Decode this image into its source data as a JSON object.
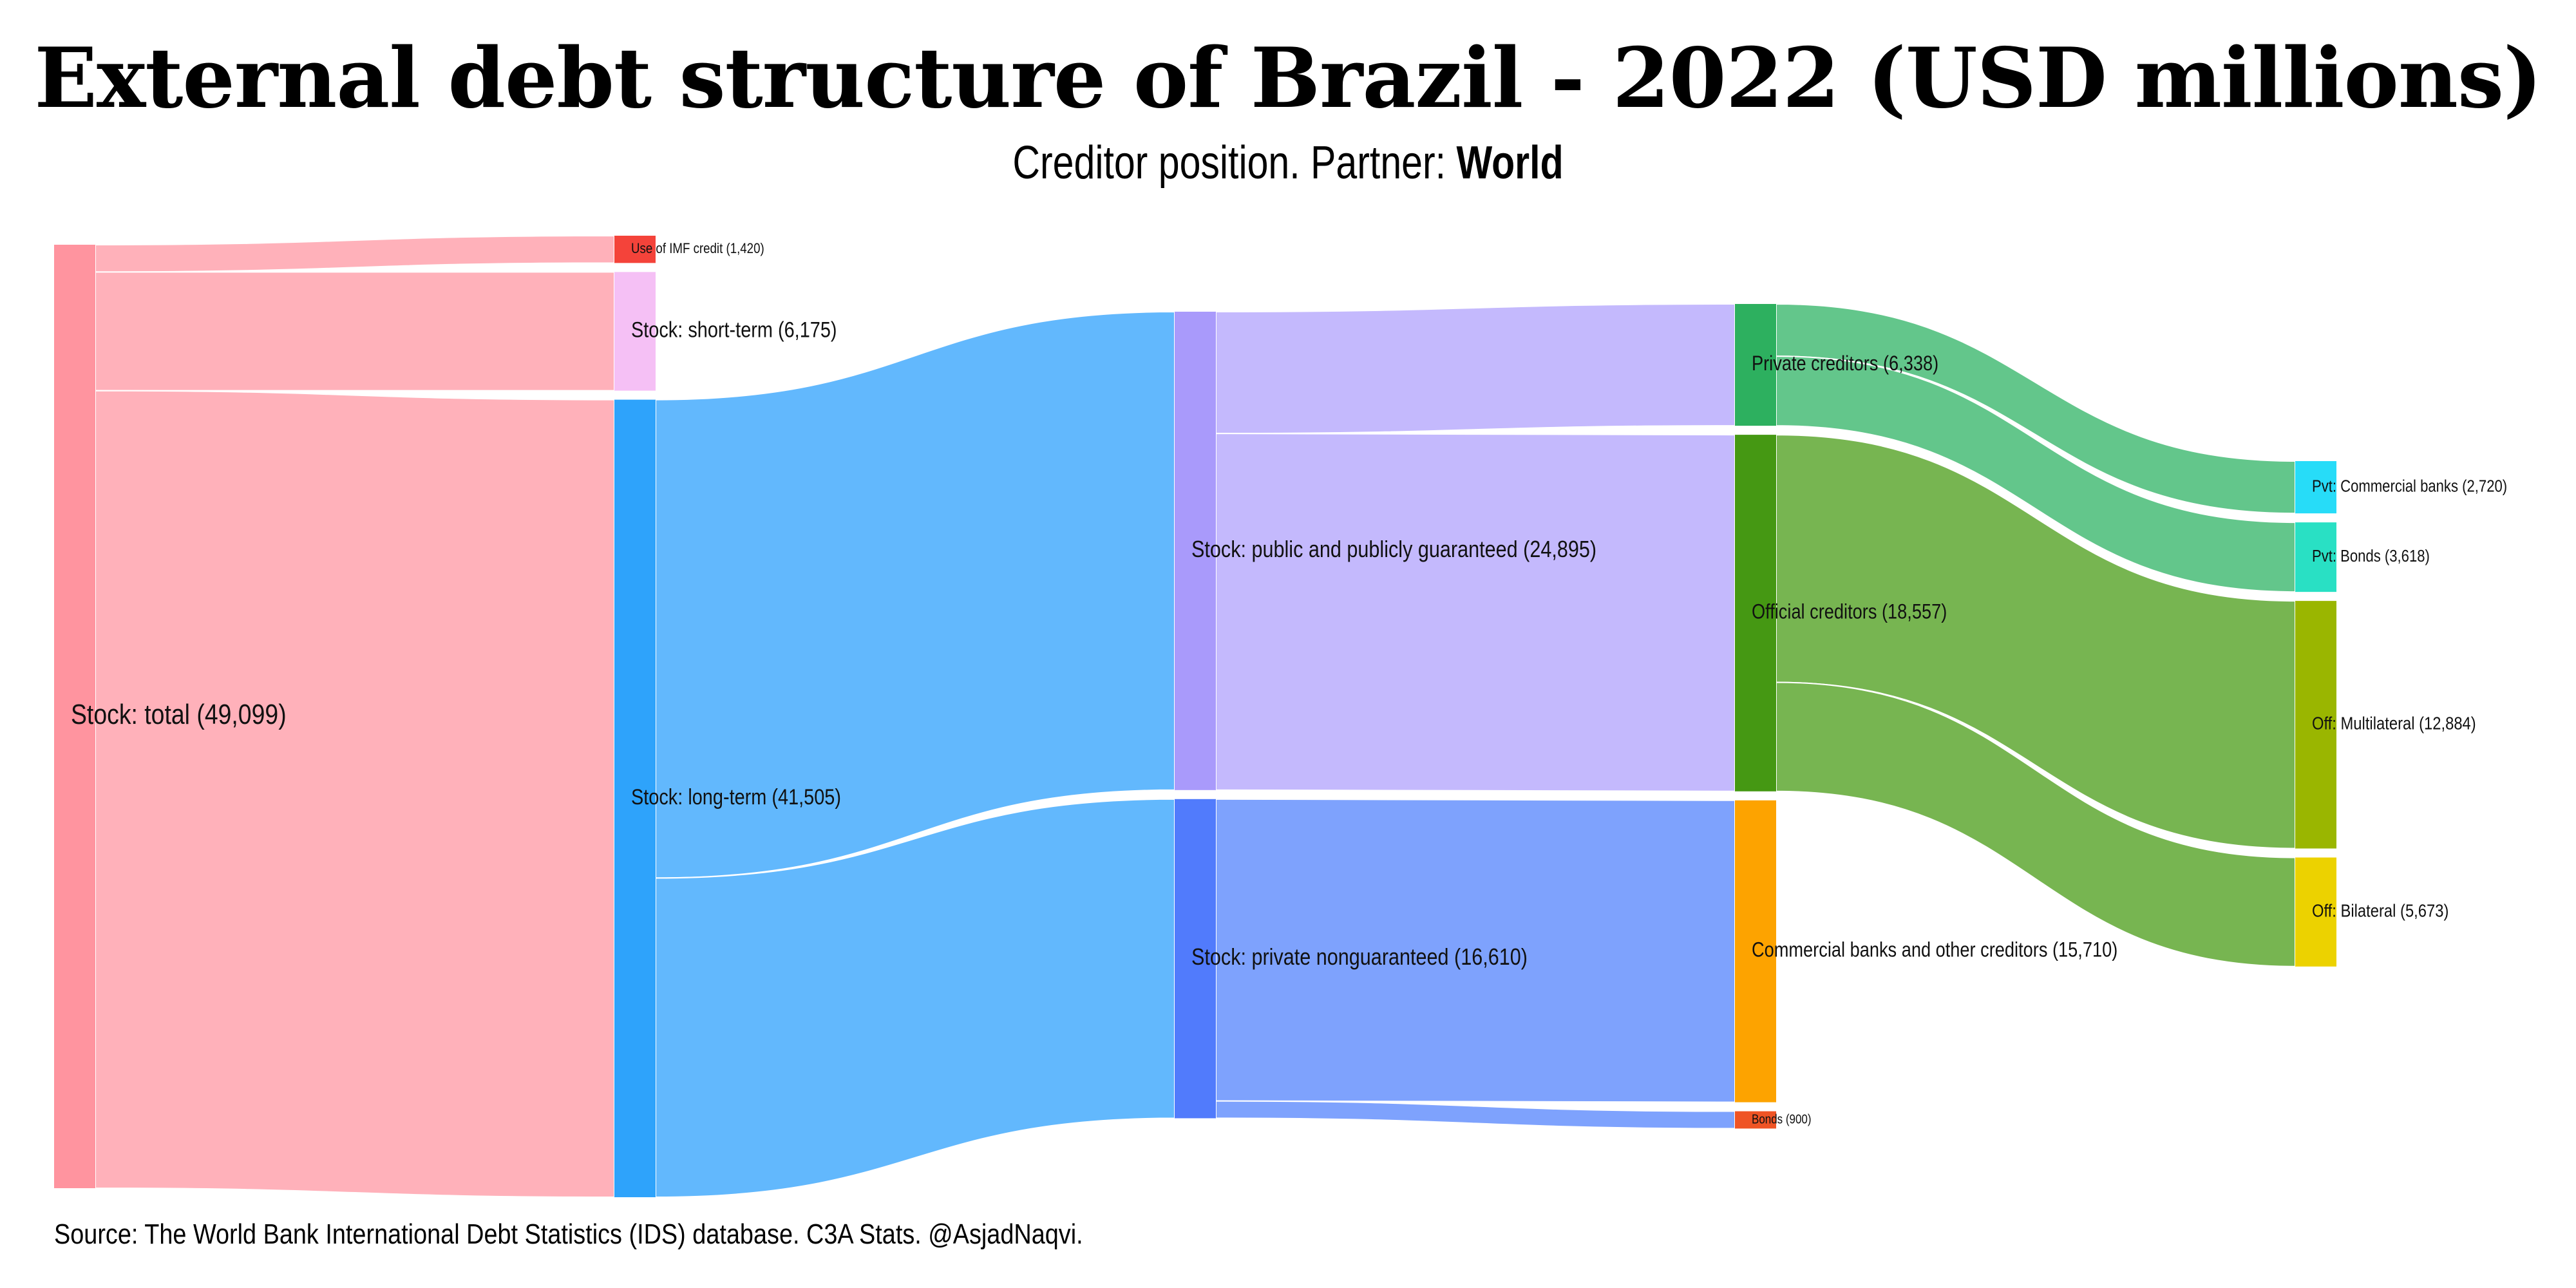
{
  "title": "External debt structure of Brazil - 2022 (USD millions)",
  "subtitle_prefix": "Creditor position. Partner: ",
  "subtitle_partner": "World",
  "source": "Source: The World Bank International Debt Statistics (IDS) database. C3A Stats. @AsjadNaqvi.",
  "chart_data": {
    "type": "sankey",
    "units": "USD millions",
    "nodes": [
      {
        "id": "total",
        "label": "Stock: total (49,099)",
        "value": 49099,
        "level": 0,
        "color": "#ff949f"
      },
      {
        "id": "imf",
        "label": "Use of IMF credit (1,420)",
        "value": 1420,
        "level": 1,
        "color": "#f4433a"
      },
      {
        "id": "short",
        "label": "Stock: short-term (6,175)",
        "value": 6175,
        "level": 1,
        "color": "#f5c0f5"
      },
      {
        "id": "long",
        "label": "Stock: long-term (41,505)",
        "value": 41505,
        "level": 1,
        "color": "#2ea3fb"
      },
      {
        "id": "ppg",
        "label": "Stock: public and publicly guaranteed (24,895)",
        "value": 24895,
        "level": 2,
        "color": "#a99afb"
      },
      {
        "id": "png",
        "label": "Stock: private nonguaranteed (16,610)",
        "value": 16610,
        "level": 2,
        "color": "#517bfc"
      },
      {
        "id": "pvt",
        "label": "Private creditors (6,338)",
        "value": 6338,
        "level": 3,
        "color": "#2db05f"
      },
      {
        "id": "off",
        "label": "Official creditors (18,557)",
        "value": 18557,
        "level": 3,
        "color": "#459813"
      },
      {
        "id": "comm",
        "label": "Commercial banks and other creditors (15,710)",
        "value": 15710,
        "level": 3,
        "color": "#fda300"
      },
      {
        "id": "bonds",
        "label": "Bonds (900)",
        "value": 900,
        "level": 3,
        "color": "#ef5425"
      },
      {
        "id": "pvtcb",
        "label": "Pvt: Commercial banks (2,720)",
        "value": 2720,
        "level": 4,
        "color": "#27dcf8"
      },
      {
        "id": "pvtbonds",
        "label": "Pvt: Bonds (3,618)",
        "value": 3618,
        "level": 4,
        "color": "#29e0c4"
      },
      {
        "id": "multi",
        "label": "Off: Multilateral (12,884)",
        "value": 12884,
        "level": 4,
        "color": "#9ab600"
      },
      {
        "id": "bilat",
        "label": "Off: Bilateral (5,673)",
        "value": 5673,
        "level": 4,
        "color": "#ecd200"
      }
    ],
    "links": [
      {
        "source": "total",
        "target": "imf",
        "value": 1420,
        "color": "#ffb1ba"
      },
      {
        "source": "total",
        "target": "short",
        "value": 6175,
        "color": "#ffb1ba"
      },
      {
        "source": "total",
        "target": "long",
        "value": 41505,
        "color": "#ffb1ba"
      },
      {
        "source": "long",
        "target": "ppg",
        "value": 24895,
        "color": "#62b8fd"
      },
      {
        "source": "long",
        "target": "png",
        "value": 16610,
        "color": "#62b8fd"
      },
      {
        "source": "ppg",
        "target": "pvt",
        "value": 6338,
        "color": "#c4b9fd"
      },
      {
        "source": "ppg",
        "target": "off",
        "value": 18557,
        "color": "#c4b9fd"
      },
      {
        "source": "png",
        "target": "comm",
        "value": 15710,
        "color": "#7ea2fd"
      },
      {
        "source": "png",
        "target": "bonds",
        "value": 900,
        "color": "#7ea2fd"
      },
      {
        "source": "pvt",
        "target": "pvtcb",
        "value": 2720,
        "color": "#63c68b"
      },
      {
        "source": "pvt",
        "target": "pvtbonds",
        "value": 3618,
        "color": "#63c68b"
      },
      {
        "source": "off",
        "target": "multi",
        "value": 12884,
        "color": "#77b551"
      },
      {
        "source": "off",
        "target": "bilat",
        "value": 5673,
        "color": "#77b551"
      }
    ]
  }
}
